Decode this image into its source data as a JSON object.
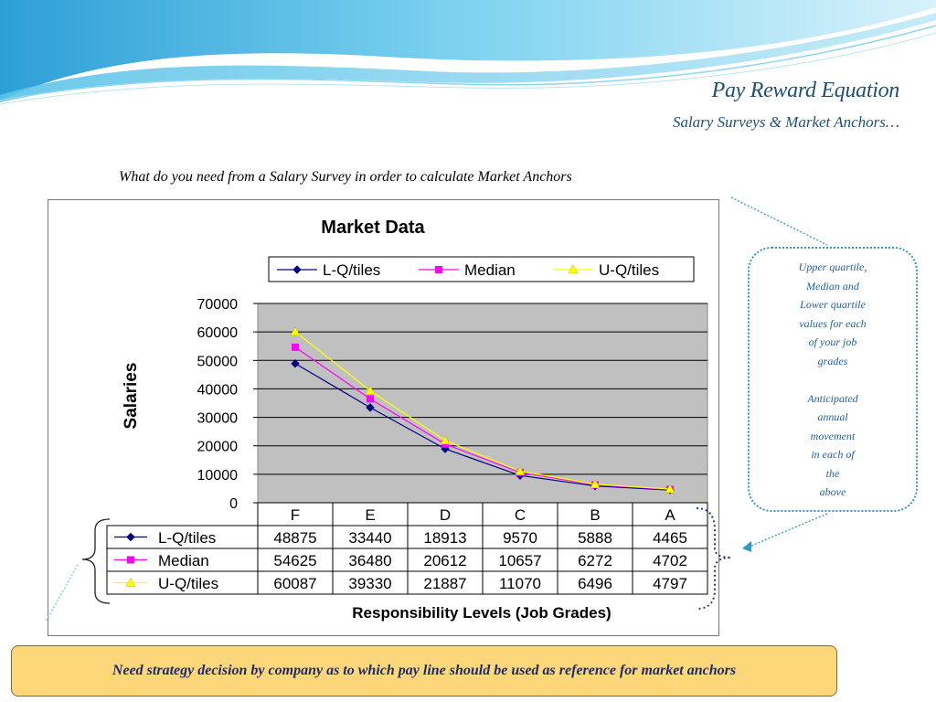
{
  "slide": {
    "title": "Pay Reward Equation",
    "subtitle": "Salary Surveys & Market Anchors…",
    "question": "What do you need from a Salary Survey in order to calculate Market Anchors",
    "callout_lines": [
      "Upper quartile,",
      "Median and",
      "Lower quartile",
      "values for each",
      "of your job",
      "grades",
      "",
      "Anticipated",
      "annual",
      "movement",
      "in each of",
      "the",
      "above"
    ],
    "bottom_note": "Need strategy decision by company as to which pay line should be used as reference for market anchors",
    "colors": {
      "title": "#1f4e79",
      "callout_border": "#2e9ac4",
      "note_bg": "#fdd77a",
      "plot_bg": "#c0c0c0"
    }
  },
  "chart_data": {
    "type": "line",
    "title": "Market Data",
    "xlabel": "Responsibility Levels (Job Grades)",
    "ylabel": "Salaries",
    "categories": [
      "F",
      "E",
      "D",
      "C",
      "B",
      "A"
    ],
    "ylim": [
      0,
      70000
    ],
    "yticks": [
      "0",
      "10000",
      "20000",
      "30000",
      "40000",
      "50000",
      "60000",
      "70000"
    ],
    "grid": true,
    "legend_position": "top",
    "series": [
      {
        "name": "L-Q/tiles",
        "values": [
          48875,
          33440,
          18913,
          9570,
          5888,
          4465
        ],
        "color": "#000080",
        "marker": "diamond"
      },
      {
        "name": "Median",
        "values": [
          54625,
          36480,
          20612,
          10657,
          6272,
          4702
        ],
        "color": "#ff00ff",
        "marker": "square"
      },
      {
        "name": "U-Q/tiles",
        "values": [
          60087,
          39330,
          21887,
          11070,
          6496,
          4797
        ],
        "color": "#ffff00",
        "marker": "triangle"
      }
    ]
  }
}
